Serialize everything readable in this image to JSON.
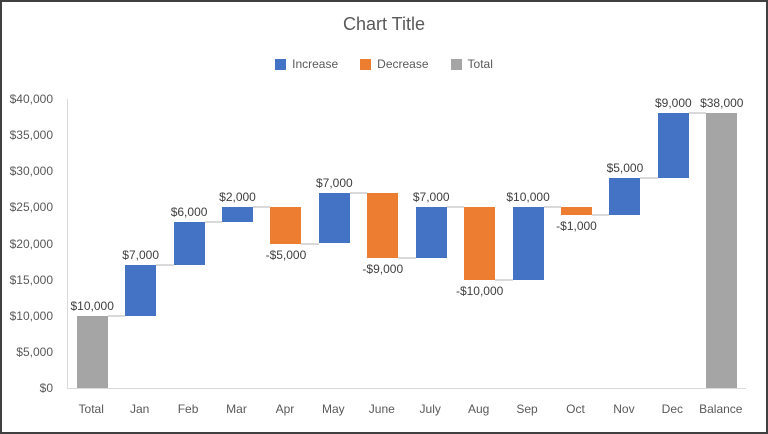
{
  "title": "Chart Title",
  "legend": {
    "items": [
      {
        "label": "Increase",
        "kind": "increase",
        "color": "#4472C4"
      },
      {
        "label": "Decrease",
        "kind": "decrease",
        "color": "#ED7D31"
      },
      {
        "label": "Total",
        "kind": "total",
        "color": "#A5A5A5"
      }
    ]
  },
  "colors": {
    "increase": "#4472C4",
    "decrease": "#ED7D31",
    "total": "#A5A5A5",
    "axis_line": "#D9D9D9",
    "connector": "#D9D9D9",
    "axis_text": "#595959",
    "label_text": "#404040"
  },
  "chart_data": {
    "type": "bar",
    "subtype": "waterfall",
    "title": "Chart Title",
    "xlabel": "",
    "ylabel": "",
    "ylim": [
      0,
      40000
    ],
    "grid": false,
    "legend_position": "top",
    "categories": [
      "Total",
      "Jan",
      "Feb",
      "Mar",
      "Apr",
      "May",
      "June",
      "July",
      "Aug",
      "Sep",
      "Oct",
      "Nov",
      "Dec",
      "Balance"
    ],
    "yticks": [
      {
        "value": 0,
        "label": "$0"
      },
      {
        "value": 5000,
        "label": "$5,000"
      },
      {
        "value": 10000,
        "label": "$10,000"
      },
      {
        "value": 15000,
        "label": "$15,000"
      },
      {
        "value": 20000,
        "label": "$20,000"
      },
      {
        "value": 25000,
        "label": "$25,000"
      },
      {
        "value": 30000,
        "label": "$30,000"
      },
      {
        "value": 35000,
        "label": "$35,000"
      },
      {
        "value": 40000,
        "label": "$40,000"
      }
    ],
    "bars": [
      {
        "category": "Total",
        "kind": "total",
        "value": 10000,
        "start": 0,
        "end": 10000,
        "label": "$10,000"
      },
      {
        "category": "Jan",
        "kind": "increase",
        "value": 7000,
        "start": 10000,
        "end": 17000,
        "label": "$7,000"
      },
      {
        "category": "Feb",
        "kind": "increase",
        "value": 6000,
        "start": 17000,
        "end": 23000,
        "label": "$6,000"
      },
      {
        "category": "Mar",
        "kind": "increase",
        "value": 2000,
        "start": 23000,
        "end": 25000,
        "label": "$2,000"
      },
      {
        "category": "Apr",
        "kind": "decrease",
        "value": -5000,
        "start": 25000,
        "end": 20000,
        "label": "-$5,000"
      },
      {
        "category": "May",
        "kind": "increase",
        "value": 7000,
        "start": 20000,
        "end": 27000,
        "label": "$7,000"
      },
      {
        "category": "June",
        "kind": "decrease",
        "value": -9000,
        "start": 27000,
        "end": 18000,
        "label": "-$9,000"
      },
      {
        "category": "July",
        "kind": "increase",
        "value": 7000,
        "start": 18000,
        "end": 25000,
        "label": "$7,000"
      },
      {
        "category": "Aug",
        "kind": "decrease",
        "value": -10000,
        "start": 25000,
        "end": 15000,
        "label": "-$10,000"
      },
      {
        "category": "Sep",
        "kind": "increase",
        "value": 10000,
        "start": 15000,
        "end": 25000,
        "label": "$10,000"
      },
      {
        "category": "Oct",
        "kind": "decrease",
        "value": -1000,
        "start": 25000,
        "end": 24000,
        "label": "-$1,000"
      },
      {
        "category": "Nov",
        "kind": "increase",
        "value": 5000,
        "start": 24000,
        "end": 29000,
        "label": "$5,000"
      },
      {
        "category": "Dec",
        "kind": "increase",
        "value": 9000,
        "start": 29000,
        "end": 38000,
        "label": "$9,000"
      },
      {
        "category": "Balance",
        "kind": "total",
        "value": 38000,
        "start": 0,
        "end": 38000,
        "label": "$38,000"
      }
    ]
  }
}
